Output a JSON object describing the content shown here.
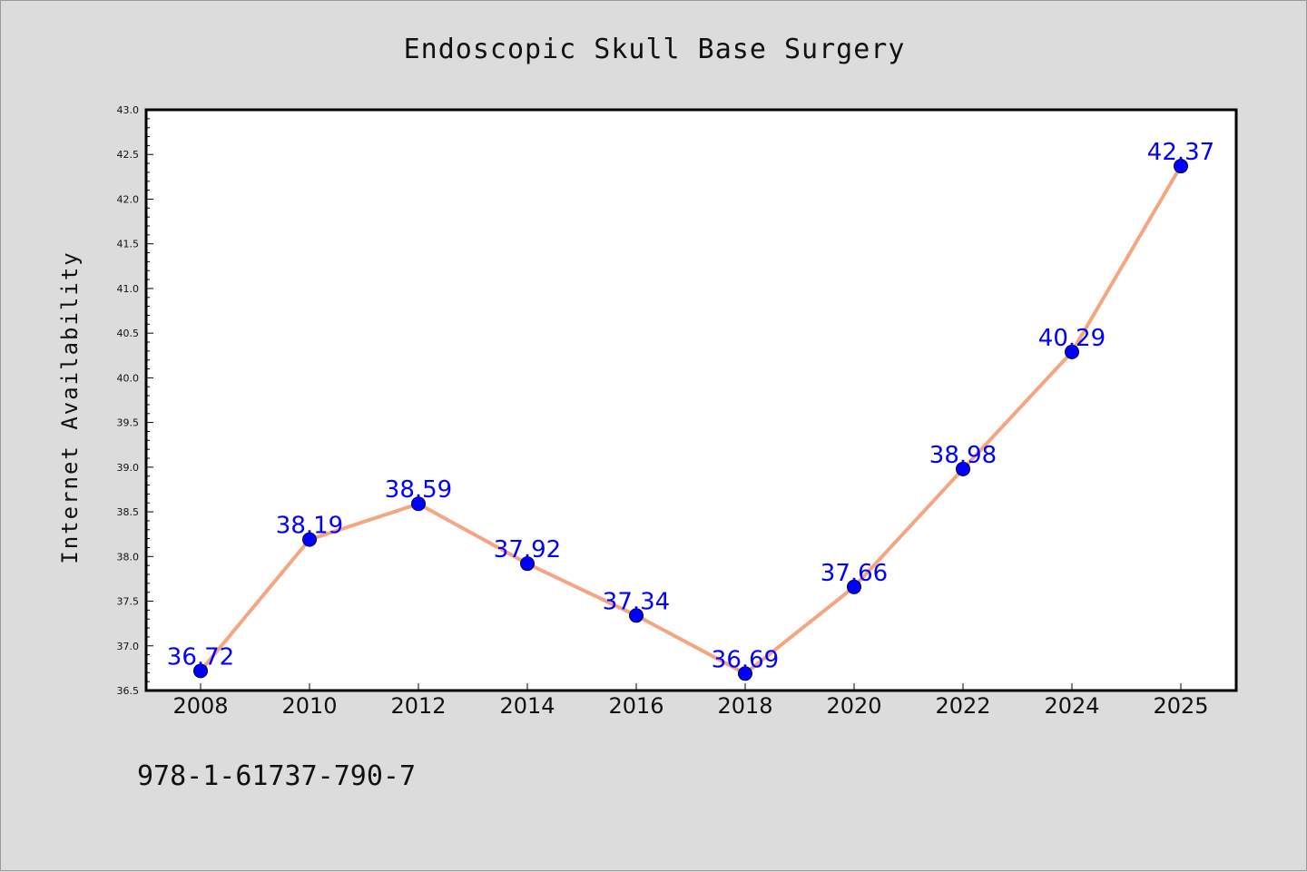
{
  "chart_data": {
    "type": "line",
    "title": "Endoscopic Skull Base Surgery",
    "ylabel": "Internet Availability",
    "xlabel": "",
    "categories": [
      "2008",
      "2010",
      "2012",
      "2014",
      "2016",
      "2018",
      "2020",
      "2022",
      "2024",
      "2025"
    ],
    "values": [
      36.72,
      38.19,
      38.59,
      37.92,
      37.34,
      36.69,
      37.66,
      38.98,
      40.29,
      42.37
    ],
    "data_labels": [
      "36.72",
      "38.19",
      "38.59",
      "37.92",
      "37.34",
      "36.69",
      "37.66",
      "38.98",
      "40.29",
      "42.37"
    ],
    "ylim": [
      36.5,
      43.0
    ],
    "yticks": [
      "36.5",
      "37.0",
      "37.5",
      "38.0",
      "38.5",
      "39.0",
      "39.5",
      "40.0",
      "40.5",
      "41.0",
      "41.5",
      "42.0",
      "42.5",
      "43.0"
    ],
    "grid": false,
    "legend": "none",
    "line_color": "#f4a582",
    "marker_color": "#0000ff",
    "label_color": "#0000ff"
  },
  "footer_text": "978-1-61737-790-7"
}
